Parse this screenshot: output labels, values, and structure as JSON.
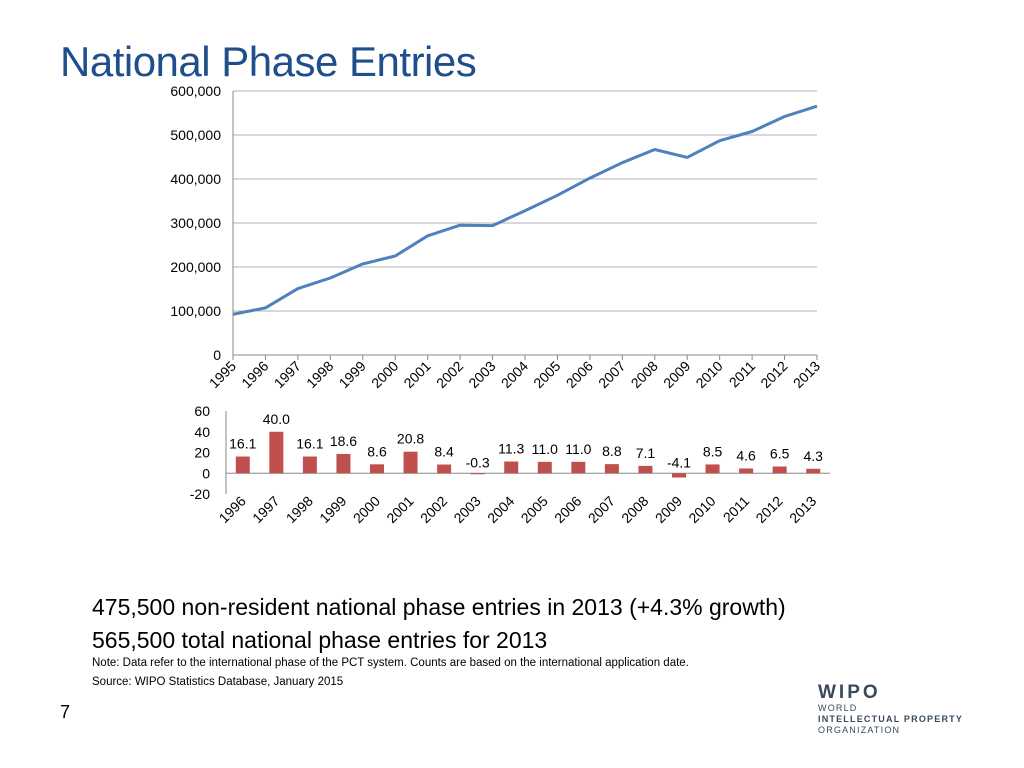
{
  "page": {
    "title": "National Phase Entries",
    "summary_line_1": "475,500 non-resident national phase entries in 2013 (+4.3% growth)",
    "summary_line_2": "565,500 total national phase entries for 2013",
    "note": "Note:  Data refer to the international phase of the PCT system.   Counts are based on the international application date.",
    "source": "Source:  WIPO Statistics Database, January 2015",
    "slide_number": "7",
    "logo": {
      "name": "WIPO",
      "line1": "WORLD",
      "line2": "INTELLECTUAL PROPERTY",
      "line3": "ORGANIZATION"
    }
  },
  "chart_data": [
    {
      "type": "line",
      "x": [
        "1995",
        "1996",
        "1997",
        "1998",
        "1999",
        "2000",
        "2001",
        "2002",
        "2003",
        "2004",
        "2005",
        "2006",
        "2007",
        "2008",
        "2009",
        "2010",
        "2011",
        "2012",
        "2013"
      ],
      "series": [
        {
          "values": [
            92500,
            107000,
            151000,
            175000,
            207000,
            225000,
            271000,
            295000,
            294000,
            328000,
            363000,
            402000,
            437000,
            467000,
            449000,
            487000,
            508000,
            542000,
            565500
          ],
          "color": "#4f81bd"
        }
      ],
      "yticks": [
        "0",
        "100,000",
        "200,000",
        "300,000",
        "400,000",
        "500,000",
        "600,000"
      ],
      "ylim": [
        0,
        600000
      ],
      "grid": true,
      "legend": "none"
    },
    {
      "type": "bar",
      "categories": [
        "1996",
        "1997",
        "1998",
        "1999",
        "2000",
        "2001",
        "2002",
        "2003",
        "2004",
        "2005",
        "2006",
        "2007",
        "2008",
        "2009",
        "2010",
        "2011",
        "2012",
        "2013"
      ],
      "values": [
        16.1,
        40.0,
        16.1,
        18.6,
        8.6,
        20.8,
        8.4,
        -0.3,
        11.3,
        11.0,
        11.0,
        8.8,
        7.1,
        -4.1,
        8.5,
        4.6,
        6.5,
        4.3
      ],
      "labels": [
        "16.1",
        "40.0",
        "16.1",
        "18.6",
        "8.6",
        "20.8",
        "8.4",
        "-0.3",
        "11.3",
        "11.0",
        "11.0",
        "8.8",
        "7.1",
        "-4.1",
        "8.5",
        "4.6",
        "6.5",
        "4.3"
      ],
      "yticks": [
        "-20",
        "0",
        "20",
        "40",
        "60"
      ],
      "ylim": [
        -20,
        60
      ],
      "color": "#c0504d",
      "grid": false,
      "legend": "none"
    }
  ]
}
